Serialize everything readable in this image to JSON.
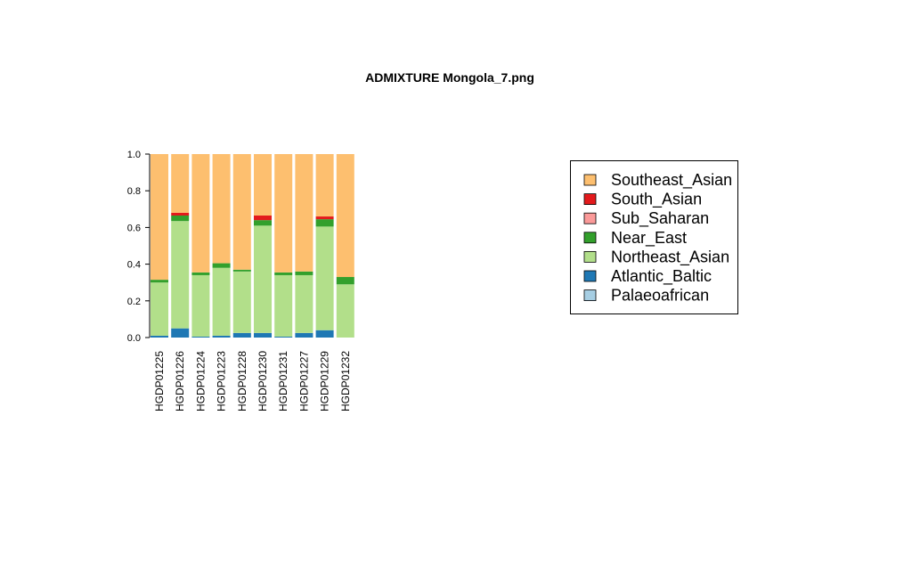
{
  "chart_data": {
    "type": "bar",
    "stacked": true,
    "title": "ADMIXTURE Mongola_7.png",
    "xlabel": "",
    "ylabel": "",
    "ylim": [
      0,
      1
    ],
    "yticks": [
      "0.0",
      "0.2",
      "0.4",
      "0.6",
      "0.8",
      "1.0"
    ],
    "ytick_values": [
      0,
      0.2,
      0.4,
      0.6,
      0.8,
      1.0
    ],
    "legend_position": "right",
    "categories": [
      "HGDP01225",
      "HGDP01226",
      "HGDP01224",
      "HGDP01223",
      "HGDP01228",
      "HGDP01230",
      "HGDP01231",
      "HGDP01227",
      "HGDP01229",
      "HGDP01232"
    ],
    "series": [
      {
        "name": "Palaeoafrican",
        "color": "#A6CEE3",
        "values": [
          0,
          0,
          0,
          0,
          0,
          0,
          0,
          0,
          0,
          0
        ]
      },
      {
        "name": "Atlantic_Baltic",
        "color": "#1F78B4",
        "values": [
          0.01,
          0.05,
          0.005,
          0.01,
          0.025,
          0.025,
          0.005,
          0.025,
          0.04,
          0
        ]
      },
      {
        "name": "Northeast_Asian",
        "color": "#B2DF8A",
        "values": [
          0.29,
          0.585,
          0.335,
          0.37,
          0.335,
          0.585,
          0.335,
          0.315,
          0.565,
          0.29
        ]
      },
      {
        "name": "Near_East",
        "color": "#33A02C",
        "values": [
          0.015,
          0.03,
          0.015,
          0.025,
          0.01,
          0.03,
          0.015,
          0.02,
          0.04,
          0.04
        ]
      },
      {
        "name": "Sub_Saharan",
        "color": "#FB9A99",
        "values": [
          0,
          0,
          0,
          0,
          0,
          0,
          0,
          0,
          0,
          0
        ]
      },
      {
        "name": "South_Asian",
        "color": "#E31A1C",
        "values": [
          0,
          0.015,
          0,
          0,
          0,
          0.025,
          0,
          0,
          0.015,
          0
        ]
      },
      {
        "name": "Southeast_Asian",
        "color": "#FDBF6F",
        "values": [
          0.685,
          0.32,
          0.645,
          0.595,
          0.63,
          0.335,
          0.645,
          0.64,
          0.34,
          0.67
        ]
      }
    ],
    "legend_order": [
      "Southeast_Asian",
      "South_Asian",
      "Sub_Saharan",
      "Near_East",
      "Northeast_Asian",
      "Atlantic_Baltic",
      "Palaeoafrican"
    ]
  }
}
